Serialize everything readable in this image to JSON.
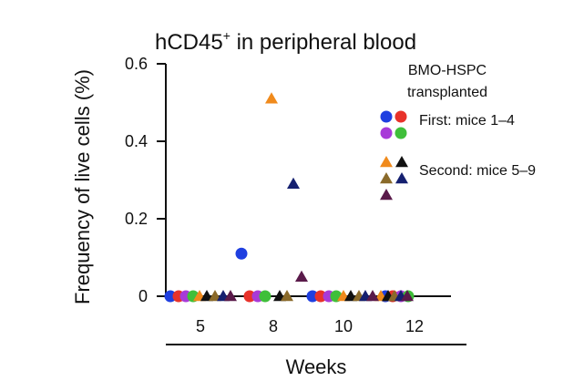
{
  "chart_data": {
    "type": "scatter",
    "title_main": "hCD45",
    "title_sup": "+",
    "title_rest": " in peripheral blood",
    "xlabel": "Weeks",
    "ylabel": "Frequency of live cells (%)",
    "ylim": [
      0,
      0.6
    ],
    "yticks": [
      "0",
      "0.2",
      "0.4",
      "0.6"
    ],
    "xticks": [
      "5",
      "8",
      "10",
      "12"
    ],
    "legend": {
      "title_line1": "BMO-HSPC",
      "title_line2": "transplanted",
      "first_label": "First: mice 1–4",
      "second_label": "Second: mice 5–9"
    },
    "colors": {
      "mouse1": "#1f3fe0",
      "mouse2": "#e8322a",
      "mouse3": "#a83ad8",
      "mouse4": "#3fbf3a",
      "mouse5": "#f08a1c",
      "mouse6": "#111111",
      "mouse7": "#8a6a2a",
      "mouse8": "#152070",
      "mouse9": "#5a1a4a"
    },
    "series": [
      {
        "mouse": "mouse1",
        "marker": "circle",
        "values": [
          0,
          0.11,
          0,
          0
        ]
      },
      {
        "mouse": "mouse2",
        "marker": "circle",
        "values": [
          0,
          0,
          0,
          0
        ]
      },
      {
        "mouse": "mouse3",
        "marker": "circle",
        "values": [
          0,
          0,
          0,
          0
        ]
      },
      {
        "mouse": "mouse4",
        "marker": "circle",
        "values": [
          0,
          0,
          0,
          0
        ]
      },
      {
        "mouse": "mouse5",
        "marker": "triangle",
        "values": [
          0,
          0.51,
          0,
          0
        ]
      },
      {
        "mouse": "mouse6",
        "marker": "triangle",
        "values": [
          0,
          0,
          0,
          0
        ]
      },
      {
        "mouse": "mouse7",
        "marker": "triangle",
        "values": [
          0,
          0,
          0,
          0
        ]
      },
      {
        "mouse": "mouse8",
        "marker": "triangle",
        "values": [
          0,
          0.29,
          0,
          0
        ]
      },
      {
        "mouse": "mouse9",
        "marker": "triangle",
        "values": [
          0,
          0.05,
          0,
          0
        ]
      }
    ]
  }
}
